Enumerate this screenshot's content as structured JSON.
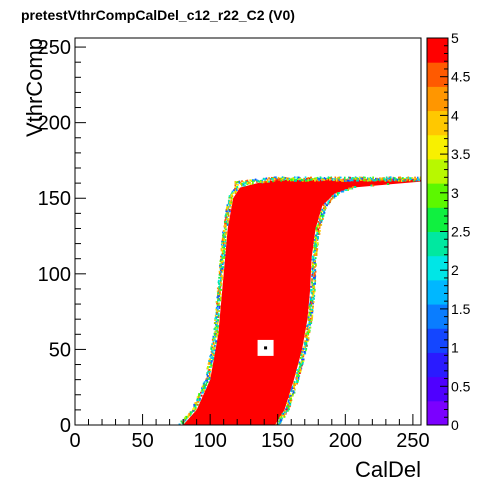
{
  "title": "pretestVthrCompCalDel_c12_r22_C2 (V0)",
  "chart_data": {
    "type": "heatmap",
    "title": "pretestVthrCompCalDel_c12_r22_C2 (V0)",
    "xlabel": "CalDel",
    "ylabel": "VthrComp",
    "xlim": [
      0,
      256
    ],
    "ylim": [
      0,
      256
    ],
    "zlim": [
      0,
      5
    ],
    "x_ticks": [
      "0",
      "50",
      "100",
      "150",
      "200",
      "250"
    ],
    "x_tick_values": [
      0,
      50,
      100,
      150,
      200,
      250
    ],
    "y_ticks": [
      "0",
      "50",
      "100",
      "150",
      "200",
      "250"
    ],
    "y_tick_values": [
      0,
      50,
      100,
      150,
      200,
      250
    ],
    "palette_ticks": [
      "0",
      "0.5",
      "1",
      "1.5",
      "2",
      "2.5",
      "3",
      "3.5",
      "4",
      "4.5",
      "5"
    ],
    "palette_tick_values": [
      0,
      0.5,
      1,
      1.5,
      2,
      2.5,
      3,
      3.5,
      4,
      4.5,
      5
    ],
    "palette": "rainbow (violet→blue→cyan→green→yellow→orange→red)",
    "efficiency_region": {
      "value": 5,
      "left_edge": [
        [
          80,
          0
        ],
        [
          90,
          10
        ],
        [
          100,
          30
        ],
        [
          106,
          60
        ],
        [
          110,
          100
        ],
        [
          113,
          130
        ],
        [
          117,
          150
        ],
        [
          122,
          157
        ],
        [
          135,
          160
        ],
        [
          148,
          162
        ]
      ],
      "right_edge": [
        [
          148,
          0
        ],
        [
          155,
          10
        ],
        [
          162,
          30
        ],
        [
          168,
          50
        ],
        [
          172,
          70
        ],
        [
          174,
          90
        ],
        [
          175,
          110
        ],
        [
          178,
          130
        ],
        [
          183,
          145
        ],
        [
          192,
          153
        ],
        [
          205,
          157
        ],
        [
          230,
          159
        ],
        [
          256,
          161
        ]
      ],
      "top_band_ylim": [
        152,
        163
      ]
    },
    "marker": {
      "x": 141,
      "y": 51,
      "note": "single cell with value 0 inside region"
    }
  }
}
